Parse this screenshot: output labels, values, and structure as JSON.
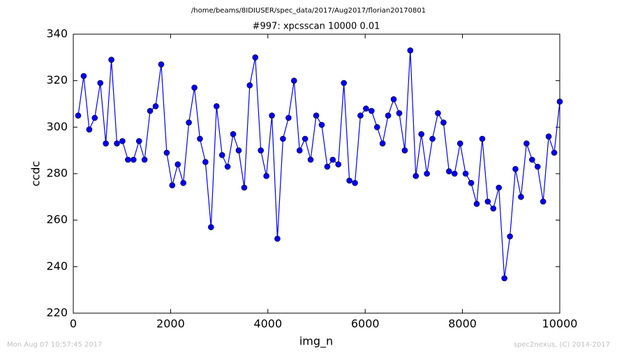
{
  "chart_data": {
    "type": "line",
    "header": "/home/beams/8IDIUSER/spec_data/2017/Aug2017/florian20170801",
    "title": "#997: xpcsscan 10000 0.01",
    "xlabel": "img_n",
    "ylabel": "ccdc",
    "footer_left": "Mon Aug 07 10:57:45 2017",
    "footer_right": "spec2nexus, (C) 2014-2017",
    "color": "#0000ff",
    "x": [
      100,
      214,
      328,
      441,
      555,
      669,
      783,
      897,
      1010,
      1124,
      1238,
      1352,
      1465,
      1579,
      1693,
      1807,
      1921,
      2034,
      2148,
      2262,
      2376,
      2490,
      2603,
      2717,
      2831,
      2945,
      3059,
      3172,
      3286,
      3400,
      3514,
      3627,
      3741,
      3855,
      3969,
      4083,
      4196,
      4310,
      4424,
      4538,
      4652,
      4765,
      4879,
      4993,
      5107,
      5221,
      5334,
      5448,
      5562,
      5676,
      5790,
      5903,
      6017,
      6131,
      6245,
      6358,
      6472,
      6586,
      6700,
      6814,
      6927,
      7041,
      7155,
      7269,
      7383,
      7496,
      7610,
      7724,
      7838,
      7952,
      8065,
      8179,
      8293,
      8407,
      8520,
      8634,
      8748,
      8862,
      8976,
      9089,
      9203,
      9317,
      9431,
      9545,
      9658,
      9772,
      9886,
      10000
    ],
    "values": [
      305,
      322,
      299,
      304,
      319,
      293,
      329,
      293,
      294,
      286,
      286,
      294,
      286,
      307,
      309,
      327,
      289,
      275,
      284,
      276,
      302,
      317,
      295,
      285,
      257,
      309,
      288,
      283,
      297,
      290,
      274,
      318,
      330,
      290,
      279,
      305,
      252,
      295,
      304,
      320,
      290,
      295,
      286,
      305,
      301,
      283,
      286,
      284,
      319,
      277,
      276,
      305,
      308,
      307,
      300,
      293,
      305,
      312,
      306,
      290,
      333,
      279,
      297,
      280,
      295,
      306,
      302,
      281,
      280,
      293,
      280,
      276,
      267,
      295,
      268,
      265,
      274,
      235,
      253,
      282,
      270,
      293,
      286,
      283,
      268,
      296,
      289,
      311
    ],
    "xlim": [
      0,
      10000
    ],
    "xticks": [
      0,
      2000,
      4000,
      6000,
      8000,
      10000
    ],
    "ylim": [
      220,
      340
    ],
    "yticks": [
      220,
      240,
      260,
      280,
      300,
      320,
      340
    ],
    "grid": false
  }
}
